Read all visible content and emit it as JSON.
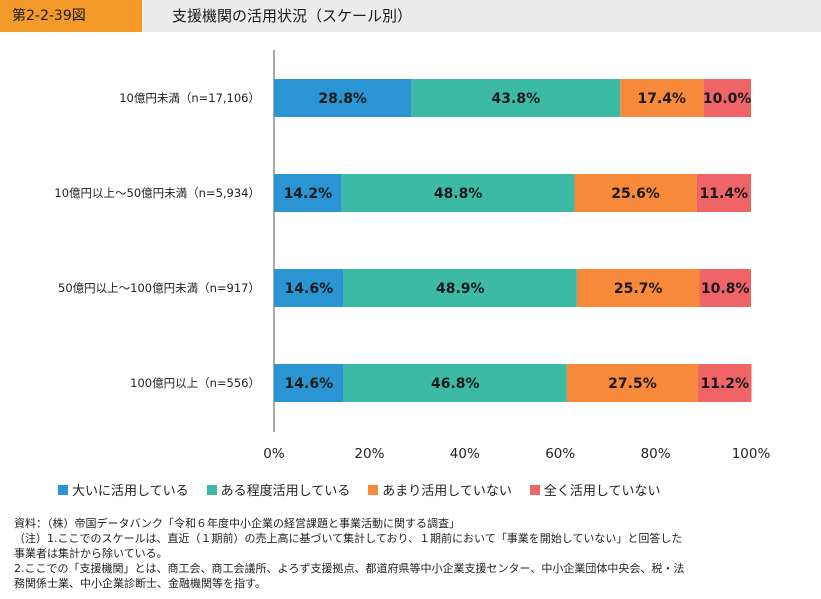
{
  "header": {
    "figure_number": "第2-2-39図",
    "title": "支援機関の活用状況（スケール別）"
  },
  "chart_data": {
    "type": "bar",
    "orientation": "horizontal",
    "stacked": true,
    "categories": [
      "10億円未満（n=17,106）",
      "10億円以上～50億円未満（n=5,934）",
      "50億円以上～100億円未満（n=917）",
      "100億円以上（n=556）"
    ],
    "series": [
      {
        "name": "大いに活用している",
        "color": "#2a95d2",
        "values": [
          28.8,
          14.2,
          14.6,
          14.6
        ],
        "labels": [
          "28.8%",
          "14.2%",
          "14.6%",
          "14.6%"
        ]
      },
      {
        "name": "ある程度活用している",
        "color": "#3dbaa5",
        "values": [
          43.8,
          48.8,
          48.9,
          46.8
        ],
        "labels": [
          "43.8%",
          "48.8%",
          "48.9%",
          "46.8%"
        ]
      },
      {
        "name": "あまり活用していない",
        "color": "#f7893a",
        "values": [
          17.4,
          25.6,
          25.7,
          27.5
        ],
        "labels": [
          "17.4%",
          "25.6%",
          "25.7%",
          "27.5%"
        ]
      },
      {
        "name": "全く活用していない",
        "color": "#ef6467",
        "values": [
          10.0,
          11.4,
          10.8,
          11.2
        ],
        "labels": [
          "10.0%",
          "11.4%",
          "10.8%",
          "11.2%"
        ]
      }
    ],
    "xlim": [
      0,
      100
    ],
    "x_ticks": [
      "0%",
      "20%",
      "40%",
      "60%",
      "80%",
      "100%"
    ],
    "legend_position": "bottom"
  },
  "notes": {
    "source": "資料：（株）帝国データバンク「令和６年度中小企業の経営課題と事業活動に関する調査」",
    "note1_line1": "（注）1.ここでのスケールは、直近（１期前）の売上高に基づいて集計しており、１期前において「事業を開始していない」と回答した",
    "note1_line2": "事業者は集計から除いている。",
    "note2_line1": "2.ここでの「支援機関」とは、商工会、商工会議所、よろず支援拠点、都道府県等中小企業支援センター、中小企業団体中央会、税・法",
    "note2_line2": "務関係士業、中小企業診断士、金融機関等を指す。"
  }
}
